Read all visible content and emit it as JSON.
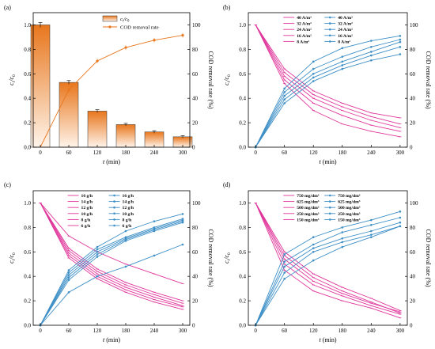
{
  "figure": {
    "colors": {
      "ratio_line": "#e0369b",
      "removal_line": "#3d8fc6",
      "bar_top": "#e8761c",
      "bar_bottom": "#fff4ea",
      "removal_line_a": "#e8761c"
    },
    "x_ticks": [
      0,
      60,
      120,
      180,
      240,
      300
    ],
    "x_label_var": "t",
    "x_label_unit": " (min)",
    "y_left_label_c": "c",
    "y_left_label_t": "t",
    "y_left_label_slash": "/c",
    "y_left_label_0": "0",
    "y_right_label": "COD removal rate (%)",
    "y_left_ticks": [
      "0.0",
      "0.2",
      "0.4",
      "0.6",
      "0.8",
      "1.0"
    ],
    "y_right_ticks": [
      "0",
      "20",
      "40",
      "60",
      "80",
      "100"
    ]
  },
  "chart_data": [
    {
      "panel": "(a)",
      "type": "bar",
      "categories": [
        "0",
        "60",
        "120",
        "180",
        "240",
        "300"
      ],
      "legend": {
        "bar": "ct/c0",
        "line": "COD removal rate"
      },
      "bars_ct_c0": [
        1.0,
        0.53,
        0.295,
        0.185,
        0.125,
        0.085
      ],
      "bar_errors": [
        0.02,
        0.015,
        0.012,
        0.01,
        0.01,
        0.01
      ],
      "line_removal_pct": {
        "x": [
          0,
          60,
          120,
          180,
          240,
          300
        ],
        "y": [
          0,
          47,
          70.5,
          81.5,
          87.5,
          91.5
        ]
      },
      "ylim_left": [
        0,
        1.1
      ],
      "ylim_right": [
        0,
        110
      ]
    },
    {
      "panel": "(b)",
      "type": "line",
      "x": [
        0,
        60,
        120,
        180,
        240,
        300
      ],
      "ylim_left": [
        0,
        1.1
      ],
      "ylim_right": [
        0,
        110
      ],
      "ratio_series": [
        {
          "name": "40 A/m²",
          "values": [
            1.0,
            0.52,
            0.3,
            0.19,
            0.13,
            0.085
          ]
        },
        {
          "name": "32 A/m²",
          "values": [
            1.0,
            0.55,
            0.36,
            0.26,
            0.18,
            0.13
          ]
        },
        {
          "name": "24 A/m²",
          "values": [
            1.0,
            0.58,
            0.4,
            0.3,
            0.22,
            0.16
          ]
        },
        {
          "name": "16 A/m²",
          "values": [
            1.0,
            0.61,
            0.43,
            0.33,
            0.25,
            0.19
          ]
        },
        {
          "name": "8 A/m²",
          "values": [
            1.0,
            0.64,
            0.46,
            0.36,
            0.28,
            0.24
          ]
        }
      ],
      "removal_series": [
        {
          "name": "40 A/m²",
          "values": [
            0,
            48,
            70,
            81,
            87,
            91
          ]
        },
        {
          "name": "32 A/m²",
          "values": [
            0,
            45,
            64,
            74,
            82,
            88
          ]
        },
        {
          "name": "24 A/m²",
          "values": [
            0,
            42,
            60,
            70,
            78,
            86
          ]
        },
        {
          "name": "16 A/m²",
          "values": [
            0,
            39,
            57,
            67,
            75,
            82
          ]
        },
        {
          "name": "8 A/m²",
          "values": [
            0,
            36,
            54,
            64,
            71,
            76
          ]
        }
      ]
    },
    {
      "panel": "(c)",
      "type": "line",
      "x": [
        0,
        60,
        120,
        180,
        240,
        300
      ],
      "ylim_left": [
        0,
        1.1
      ],
      "ylim_right": [
        0,
        110
      ],
      "ratio_series": [
        {
          "name": "16 g/h",
          "values": [
            1.0,
            0.55,
            0.38,
            0.27,
            0.19,
            0.13
          ]
        },
        {
          "name": "14 g/h",
          "values": [
            1.0,
            0.57,
            0.4,
            0.29,
            0.21,
            0.15
          ]
        },
        {
          "name": "12 g/h",
          "values": [
            1.0,
            0.59,
            0.42,
            0.31,
            0.23,
            0.16
          ]
        },
        {
          "name": "10 g/h",
          "values": [
            1.0,
            0.61,
            0.44,
            0.33,
            0.25,
            0.18
          ]
        },
        {
          "name": "8 g/h",
          "values": [
            1.0,
            0.63,
            0.46,
            0.35,
            0.27,
            0.2
          ]
        },
        {
          "name": "6 g/h",
          "values": [
            1.0,
            0.73,
            0.6,
            0.5,
            0.42,
            0.34
          ]
        }
      ],
      "removal_series": [
        {
          "name": "16 g/h",
          "values": [
            0,
            45,
            64,
            77,
            85,
            91
          ]
        },
        {
          "name": "14 g/h",
          "values": [
            0,
            43,
            62,
            72,
            80,
            87
          ]
        },
        {
          "name": "12 g/h",
          "values": [
            0,
            41,
            60,
            71,
            79,
            86
          ]
        },
        {
          "name": "10 g/h",
          "values": [
            0,
            39,
            58,
            70,
            78,
            85
          ]
        },
        {
          "name": "8 g/h",
          "values": [
            0,
            37,
            56,
            69,
            77,
            84
          ]
        },
        {
          "name": "6 g/h",
          "values": [
            0,
            27,
            40,
            48,
            57,
            66
          ]
        }
      ]
    },
    {
      "panel": "(d)",
      "type": "line",
      "x": [
        0,
        60,
        120,
        180,
        240,
        300
      ],
      "ylim_left": [
        0,
        1.1
      ],
      "ylim_right": [
        0,
        110
      ],
      "ratio_series": [
        {
          "name": "750 mg/dm³",
          "values": [
            1.0,
            0.6,
            0.42,
            0.31,
            0.22,
            0.12
          ]
        },
        {
          "name": "625 mg/dm³",
          "values": [
            1.0,
            0.57,
            0.39,
            0.28,
            0.19,
            0.1
          ]
        },
        {
          "name": "500 mg/dm³",
          "values": [
            1.0,
            0.54,
            0.36,
            0.26,
            0.18,
            0.11
          ]
        },
        {
          "name": "250 mg/dm³",
          "values": [
            1.0,
            0.5,
            0.33,
            0.24,
            0.16,
            0.09
          ]
        },
        {
          "name": "150 mg/dm³",
          "values": [
            1.0,
            0.45,
            0.28,
            0.2,
            0.14,
            0.06
          ]
        }
      ],
      "removal_series": [
        {
          "name": "750 mg/dm³",
          "values": [
            0,
            58,
            72,
            80,
            86,
            93
          ]
        },
        {
          "name": "625 mg/dm³",
          "values": [
            0,
            52,
            66,
            76,
            82,
            88
          ]
        },
        {
          "name": "500 mg/dm³",
          "values": [
            0,
            48,
            63,
            71,
            77,
            84
          ]
        },
        {
          "name": "250 mg/dm³",
          "values": [
            0,
            43,
            60,
            68,
            74,
            81
          ]
        },
        {
          "name": "150 mg/dm³",
          "values": [
            0,
            38,
            53,
            64,
            72,
            81
          ]
        }
      ]
    }
  ]
}
